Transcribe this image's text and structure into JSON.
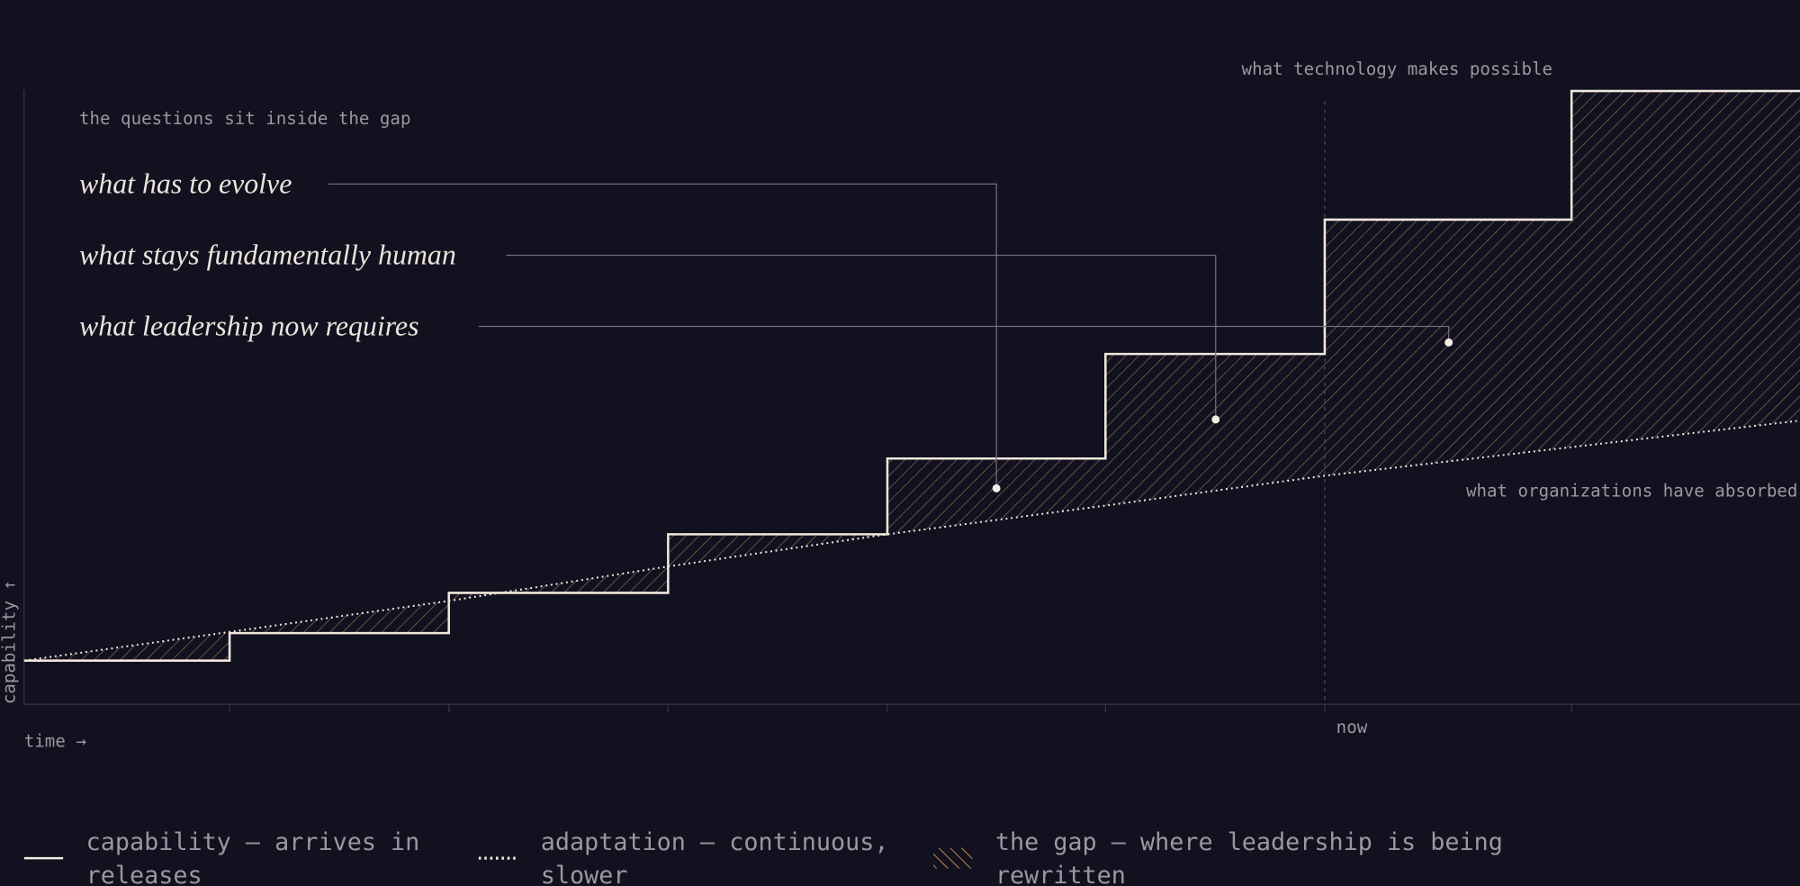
{
  "diagram": {
    "top_label": "what technology makes possible",
    "bottom_label": "what organizations have absorbed",
    "questions_intro": "the questions sit inside the gap",
    "questions": [
      "what has to evolve",
      "what stays fundamentally human",
      "what leadership now requires"
    ],
    "x_axis_label": "time →",
    "y_axis_label": "capability ↑",
    "now_label": "now",
    "legend": [
      {
        "line1": "capability — arrives in",
        "line2": "releases"
      },
      {
        "line1": "adaptation — continuous,",
        "line2": "slower"
      },
      {
        "line1": "the gap — where leadership is being",
        "line2": "rewritten"
      }
    ]
  }
}
